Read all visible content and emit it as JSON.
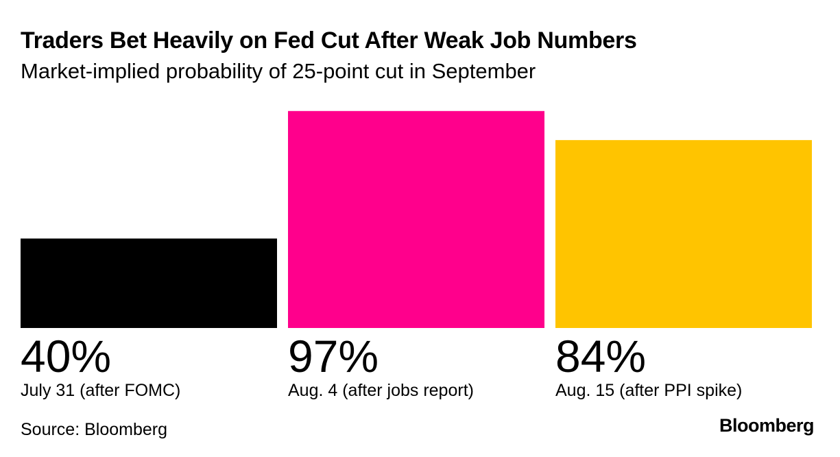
{
  "colors": {
    "background": "#ffffff",
    "text": "#000000"
  },
  "chart_data": {
    "type": "bar",
    "title": "Traders Bet Heavily on Fed Cut After Weak Job Numbers",
    "subtitle": "Market-implied probability of 25-point cut in September",
    "unit": "%",
    "ylim": [
      0,
      100
    ],
    "grid": false,
    "categories": [
      "July 31 (after FOMC)",
      "Aug. 4 (after jobs report)",
      "Aug. 15 (after PPI spike)"
    ],
    "values": [
      40,
      97,
      84
    ],
    "value_labels": [
      "40%",
      "97%",
      "84%"
    ],
    "bar_colors": [
      "#000000",
      "#ff008c",
      "#ffc400"
    ]
  },
  "footer": {
    "source": "Source: Bloomberg",
    "brand": "Bloomberg"
  }
}
